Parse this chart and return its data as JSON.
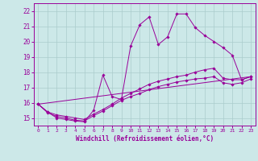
{
  "xlabel": "Windchill (Refroidissement éolien,°C)",
  "bg_color": "#cce8e8",
  "grid_color": "#aacccc",
  "line_color": "#990099",
  "xlim": [
    -0.5,
    23.5
  ],
  "ylim": [
    14.5,
    22.5
  ],
  "xticks": [
    0,
    1,
    2,
    3,
    4,
    5,
    6,
    7,
    8,
    9,
    10,
    11,
    12,
    13,
    14,
    15,
    16,
    17,
    18,
    19,
    20,
    21,
    22,
    23
  ],
  "yticks": [
    15,
    16,
    17,
    18,
    19,
    20,
    21,
    22
  ],
  "lines": [
    {
      "x": [
        0,
        1,
        2,
        3,
        4,
        5,
        6,
        7,
        8,
        9,
        10,
        11,
        12,
        13,
        14,
        15,
        16,
        17,
        18,
        19,
        20,
        21,
        22,
        23
      ],
      "y": [
        15.9,
        15.4,
        15.0,
        14.9,
        14.8,
        14.75,
        15.5,
        17.8,
        16.4,
        16.2,
        19.7,
        21.1,
        21.6,
        19.8,
        20.3,
        21.8,
        21.8,
        20.9,
        20.4,
        20.0,
        19.6,
        19.1,
        17.5,
        17.7
      ],
      "marker": true
    },
    {
      "x": [
        0,
        1,
        2,
        3,
        4,
        5,
        6,
        7,
        8,
        9,
        10,
        11,
        12,
        13,
        14,
        15,
        16,
        17,
        18,
        19,
        20,
        21,
        22,
        23
      ],
      "y": [
        15.9,
        15.4,
        15.2,
        15.1,
        15.0,
        14.9,
        15.25,
        15.55,
        15.9,
        16.3,
        16.6,
        16.9,
        17.2,
        17.4,
        17.55,
        17.7,
        17.8,
        18.0,
        18.15,
        18.25,
        17.6,
        17.5,
        17.5,
        17.7
      ],
      "marker": true
    },
    {
      "x": [
        0,
        1,
        2,
        3,
        4,
        5,
        6,
        7,
        8,
        9,
        10,
        11,
        12,
        13,
        14,
        15,
        16,
        17,
        18,
        19,
        20,
        21,
        22,
        23
      ],
      "y": [
        15.9,
        15.35,
        15.1,
        15.0,
        14.85,
        14.8,
        15.15,
        15.45,
        15.8,
        16.15,
        16.4,
        16.6,
        16.85,
        17.05,
        17.2,
        17.35,
        17.45,
        17.55,
        17.6,
        17.7,
        17.3,
        17.2,
        17.3,
        17.55
      ],
      "marker": true
    },
    {
      "x": [
        0,
        23
      ],
      "y": [
        15.9,
        17.7
      ],
      "marker": false
    }
  ]
}
